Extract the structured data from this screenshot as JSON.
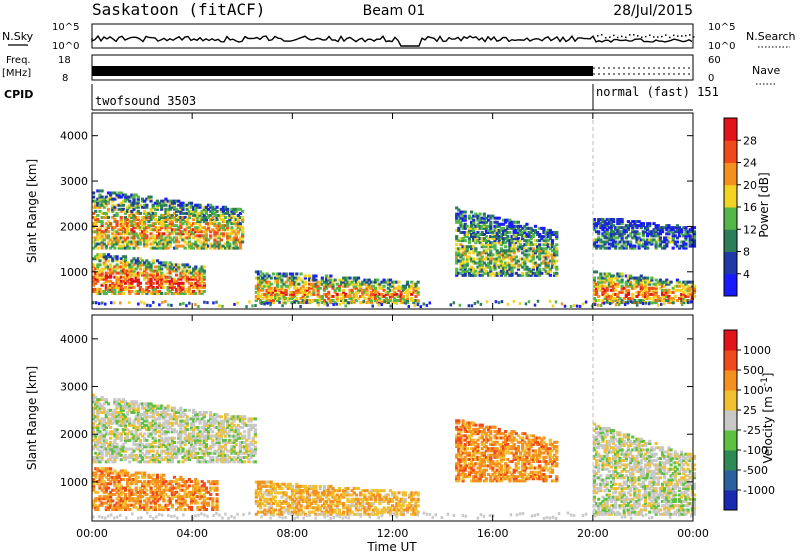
{
  "header": {
    "station": "Saskatoon (fitACF)",
    "beam": "Beam 01",
    "date": "28/Jul/2015"
  },
  "strips": {
    "nsky": {
      "label": "N.Sky",
      "ticks": [
        "10^5",
        "10^0"
      ],
      "right_ticks": [
        "10^5",
        "10^0"
      ],
      "right_label": "N.Search"
    },
    "freq": {
      "label_line1": "Freq.",
      "label_line2": "[MHz]",
      "ticks": [
        "18",
        "8"
      ],
      "right_ticks": [
        "60",
        "0"
      ],
      "right_label": "Nave"
    },
    "cpid": {
      "label": "CPID",
      "segments": [
        {
          "name": "twofsound 3503",
          "start_hour": 0,
          "end_hour": 20
        },
        {
          "name": "normal (fast) 151",
          "start_hour": 20,
          "end_hour": 24
        }
      ]
    }
  },
  "chart_data": [
    {
      "type": "heatmap",
      "name": "power-panel",
      "x_unit": "hour UT",
      "xlim": [
        0,
        24
      ],
      "ylim": [
        180,
        4500
      ],
      "ylabel": "Slant Range [km]",
      "yticks": [
        1000,
        2000,
        3000,
        4000
      ],
      "colorbar": {
        "label": "Power [dB]",
        "ticks": [
          "4",
          "8",
          "12",
          "16",
          "20",
          "24",
          "28"
        ],
        "colors": [
          "#1a1aff",
          "#1f3aa8",
          "#2e7d5a",
          "#52b748",
          "#f2d321",
          "#f5901e",
          "#f04a1a",
          "#e2141a"
        ]
      },
      "echo_regions": [
        {
          "t0": 0.0,
          "t1": 6.0,
          "r_top": 2800,
          "r_bot": 1500,
          "db_peak": 22
        },
        {
          "t0": 0.0,
          "t1": 4.5,
          "r_top": 1400,
          "r_bot": 500,
          "db_peak": 28
        },
        {
          "t0": 6.5,
          "t1": 13.0,
          "r_top": 1000,
          "r_bot": 300,
          "db_peak": 24
        },
        {
          "t0": 14.5,
          "t1": 18.5,
          "r_top": 2400,
          "r_bot": 900,
          "db_peak": 16
        },
        {
          "t0": 20.0,
          "t1": 24.0,
          "r_top": 2200,
          "r_bot": 1500,
          "db_peak": 10
        },
        {
          "t0": 20.0,
          "t1": 24.0,
          "r_top": 1000,
          "r_bot": 300,
          "db_peak": 26
        }
      ]
    },
    {
      "type": "heatmap",
      "name": "velocity-panel",
      "x_unit": "hour UT",
      "xlim": [
        0,
        24
      ],
      "ylim": [
        180,
        4500
      ],
      "xlabel": "Time UT",
      "ylabel": "Slant Range [km]",
      "xticks": [
        "00:00",
        "04:00",
        "08:00",
        "12:00",
        "16:00",
        "20:00",
        "00:00"
      ],
      "yticks": [
        1000,
        2000,
        3000,
        4000
      ],
      "colorbar": {
        "label": "Velocity [m s^-1]",
        "ticks": [
          "1000",
          "500",
          "100",
          "25",
          "-25",
          "-100",
          "-500",
          "-1000"
        ],
        "colors": [
          "#1a2ab0",
          "#2a5fa0",
          "#2e8a55",
          "#5cc040",
          "#c8c8c8",
          "#f0c030",
          "#f5901e",
          "#f04a1a",
          "#e2141a"
        ]
      },
      "echo_regions": [
        {
          "t0": 0.0,
          "t1": 6.5,
          "r_top": 2800,
          "r_bot": 1400,
          "v_typ": 0
        },
        {
          "t0": 0.0,
          "t1": 5.0,
          "r_top": 1300,
          "r_bot": 400,
          "v_typ": -150
        },
        {
          "t0": 6.5,
          "t1": 13.0,
          "r_top": 1000,
          "r_bot": 300,
          "v_typ": -80
        },
        {
          "t0": 14.5,
          "t1": 18.5,
          "r_top": 2300,
          "r_bot": 1000,
          "v_typ": -200
        },
        {
          "t0": 20.0,
          "t1": 24.0,
          "r_top": 2200,
          "r_bot": 300,
          "v_typ": 0
        }
      ]
    }
  ]
}
